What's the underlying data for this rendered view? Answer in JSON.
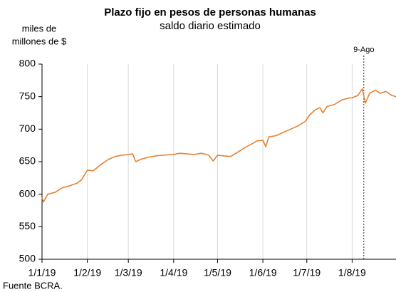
{
  "chart_data": {
    "type": "line",
    "title": "Plazo fijo en pesos de personas humanas",
    "subtitle": "saldo diario estimado",
    "y_label": [
      "miles de",
      "millones de $"
    ],
    "source": "Fuente BCRA.",
    "x": [
      "1/1/19",
      "2/1/19",
      "5/1/19",
      "10/1/19",
      "15/1/19",
      "20/1/19",
      "25/1/19",
      "28/1/19",
      "1/2/19",
      "5/2/19",
      "10/2/19",
      "15/2/19",
      "20/2/19",
      "25/2/19",
      "1/3/19",
      "4/3/19",
      "6/3/19",
      "10/3/19",
      "15/3/19",
      "20/3/19",
      "25/3/19",
      "1/4/19",
      "5/4/19",
      "10/4/19",
      "15/4/19",
      "20/4/19",
      "25/4/19",
      "28/4/19",
      "1/5/19",
      "5/5/19",
      "10/5/19",
      "15/5/19",
      "20/5/19",
      "25/5/19",
      "28/5/19",
      "1/6/19",
      "3/6/19",
      "5/6/19",
      "10/6/19",
      "15/6/19",
      "20/6/19",
      "25/6/19",
      "30/6/19",
      "3/7/19",
      "7/7/19",
      "10/7/19",
      "12/7/19",
      "15/7/19",
      "20/7/19",
      "25/7/19",
      "30/7/19",
      "1/8/19",
      "5/8/19",
      "8/8/19",
      "10/8/19",
      "13/8/19",
      "17/8/19",
      "20/8/19",
      "24/8/19",
      "28/8/19",
      "31/8/19"
    ],
    "series": [
      {
        "name": "Plazo fijo",
        "color": "#e5812f",
        "values": [
          595,
          588,
          600,
          603,
          610,
          613,
          617,
          622,
          637,
          636,
          645,
          653,
          658,
          660,
          661,
          662,
          650,
          654,
          657,
          659,
          660,
          661,
          663,
          662,
          661,
          663,
          660,
          651,
          660,
          659,
          658,
          665,
          672,
          678,
          682,
          683,
          673,
          688,
          690,
          695,
          700,
          705,
          712,
          722,
          730,
          733,
          725,
          735,
          738,
          745,
          748,
          748,
          752,
          762,
          740,
          755,
          760,
          755,
          758,
          752,
          750
        ]
      }
    ],
    "xlim": [
      "1/1/19",
      "31/8/19"
    ],
    "xticks": [
      "1/1/19",
      "1/2/19",
      "1/3/19",
      "1/4/19",
      "1/5/19",
      "1/6/19",
      "1/7/19",
      "1/8/19"
    ],
    "ylim": [
      500,
      800
    ],
    "yticks": [
      500,
      550,
      600,
      650,
      700,
      750,
      800
    ],
    "grid": true,
    "annotations": [
      {
        "x": "9/8/19",
        "label": "9-Ago"
      }
    ]
  }
}
